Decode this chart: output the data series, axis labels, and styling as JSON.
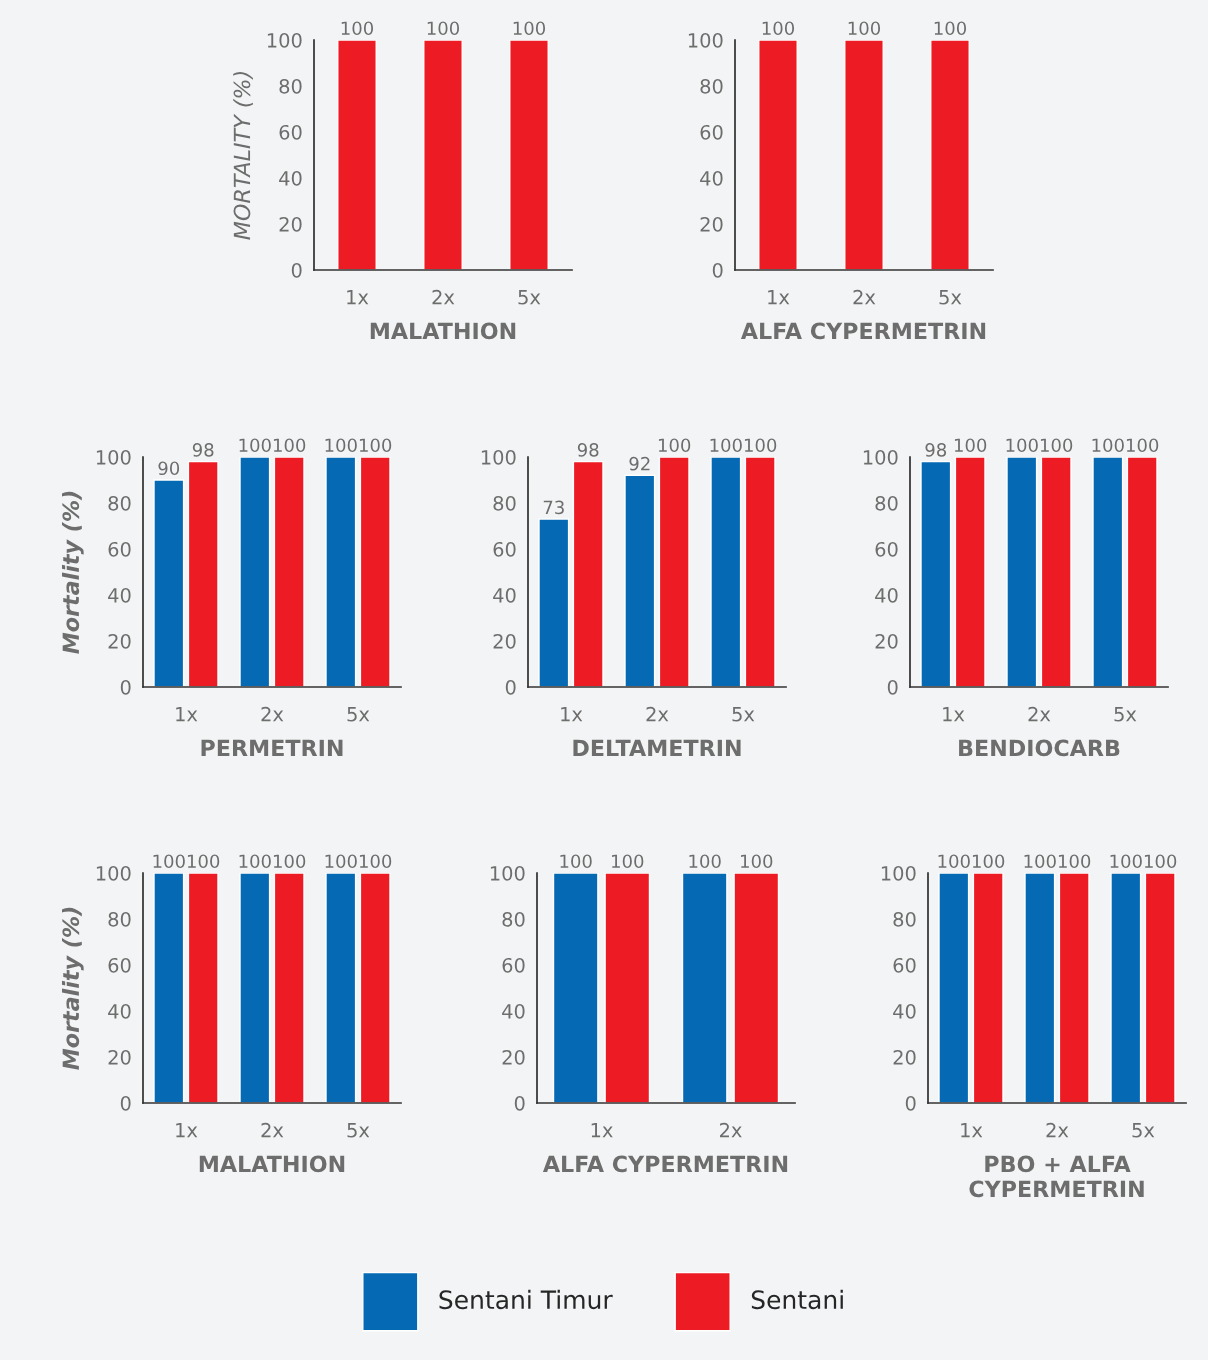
{
  "chart_data": [
    {
      "type": "bar",
      "xlabel": "MALATHION",
      "ylabel": "MORTALITY (%)",
      "categories": [
        "1x",
        "2x",
        "5x"
      ],
      "ylim": [
        0,
        100
      ],
      "yticks": [
        0,
        20,
        40,
        60,
        80,
        100
      ],
      "data_labels": true,
      "grid": false,
      "legend": false,
      "series": [
        {
          "color": "#ed1c24",
          "values": [
            100,
            100,
            100
          ]
        }
      ]
    },
    {
      "type": "bar",
      "xlabel": "ALFA CYPERMETRIN",
      "categories": [
        "1x",
        "2x",
        "5x"
      ],
      "ylim": [
        0,
        100
      ],
      "yticks": [
        0,
        20,
        40,
        60,
        80,
        100
      ],
      "data_labels": true,
      "grid": false,
      "legend": false,
      "series": [
        {
          "color": "#ed1c24",
          "values": [
            100,
            100,
            100
          ]
        }
      ]
    },
    {
      "type": "bar",
      "xlabel": "PERMETRIN",
      "ylabel": "Mortality (%)",
      "categories": [
        "1x",
        "2x",
        "5x"
      ],
      "ylim": [
        0,
        100
      ],
      "yticks": [
        0,
        20,
        40,
        60,
        80,
        100
      ],
      "data_labels": true,
      "grid": false,
      "legend": false,
      "series": [
        {
          "color": "#0569b3",
          "values": [
            90,
            100,
            100
          ]
        },
        {
          "color": "#ed1c24",
          "values": [
            98,
            100,
            100
          ]
        }
      ]
    },
    {
      "type": "bar",
      "xlabel": "DELTAMETRIN",
      "categories": [
        "1x",
        "2x",
        "5x"
      ],
      "ylim": [
        0,
        100
      ],
      "yticks": [
        0,
        20,
        40,
        60,
        80,
        100
      ],
      "data_labels": true,
      "grid": false,
      "legend": false,
      "series": [
        {
          "color": "#0569b3",
          "values": [
            73,
            92,
            100
          ]
        },
        {
          "color": "#ed1c24",
          "values": [
            98,
            100,
            100
          ]
        }
      ]
    },
    {
      "type": "bar",
      "xlabel": "BENDIOCARB",
      "categories": [
        "1x",
        "2x",
        "5x"
      ],
      "ylim": [
        0,
        100
      ],
      "yticks": [
        0,
        20,
        40,
        60,
        80,
        100
      ],
      "data_labels": true,
      "grid": false,
      "legend": false,
      "series": [
        {
          "color": "#0569b3",
          "values": [
            98,
            100,
            100
          ]
        },
        {
          "color": "#ed1c24",
          "values": [
            100,
            100,
            100
          ]
        }
      ]
    },
    {
      "type": "bar",
      "xlabel": "MALATHION",
      "ylabel": "Mortality (%)",
      "categories": [
        "1x",
        "2x",
        "5x"
      ],
      "ylim": [
        0,
        100
      ],
      "yticks": [
        0,
        20,
        40,
        60,
        80,
        100
      ],
      "data_labels": true,
      "grid": false,
      "legend": false,
      "series": [
        {
          "color": "#0569b3",
          "values": [
            100,
            100,
            100
          ]
        },
        {
          "color": "#ed1c24",
          "values": [
            100,
            100,
            100
          ]
        }
      ]
    },
    {
      "type": "bar",
      "xlabel": "ALFA CYPERMETRIN",
      "categories": [
        "1x",
        "2x"
      ],
      "ylim": [
        0,
        100
      ],
      "yticks": [
        0,
        20,
        40,
        60,
        80,
        100
      ],
      "data_labels": true,
      "grid": false,
      "legend": false,
      "series": [
        {
          "color": "#0569b3",
          "values": [
            100,
            100
          ]
        },
        {
          "color": "#ed1c24",
          "values": [
            100,
            100
          ]
        }
      ]
    },
    {
      "type": "bar",
      "xlabel": "PBO + ALFA\nCYPERMETRIN",
      "categories": [
        "1x",
        "2x",
        "5x"
      ],
      "ylim": [
        0,
        100
      ],
      "yticks": [
        0,
        20,
        40,
        60,
        80,
        100
      ],
      "data_labels": true,
      "grid": false,
      "legend": "bottom",
      "series": [
        {
          "name": "Sentani Timur",
          "color": "#0569b3",
          "values": [
            100,
            100,
            100
          ]
        },
        {
          "name": "Sentani",
          "color": "#ed1c24",
          "values": [
            100,
            100,
            100
          ]
        }
      ]
    }
  ]
}
